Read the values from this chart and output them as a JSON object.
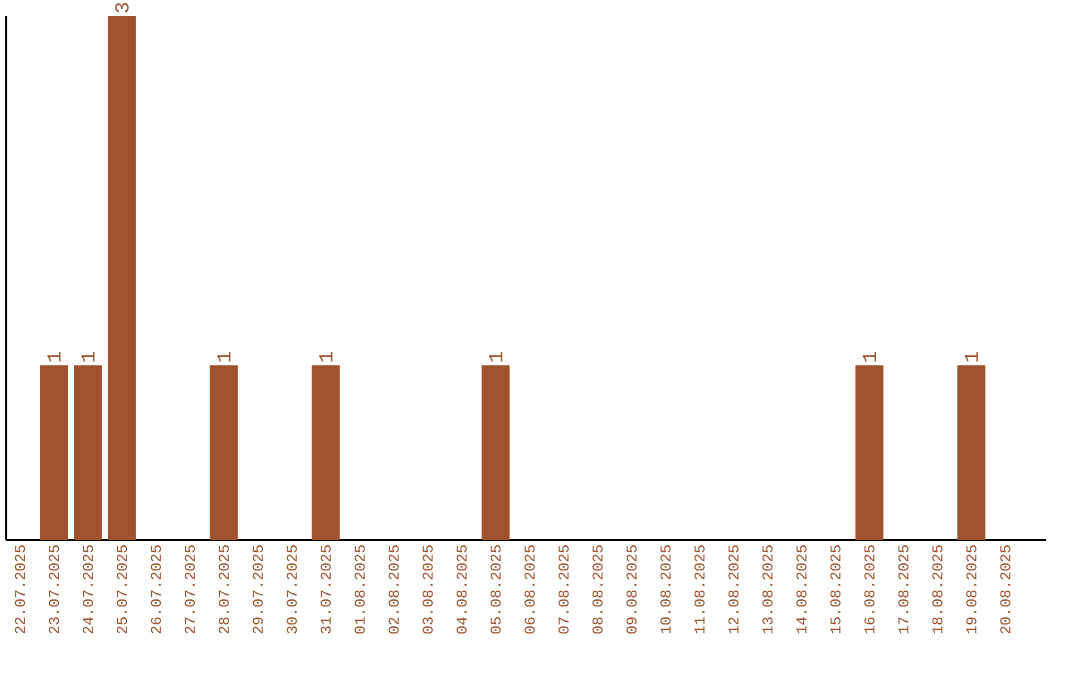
{
  "chart_data": {
    "type": "bar",
    "color": "#a0522d",
    "categories": [
      "22.07.2025",
      "23.07.2025",
      "24.07.2025",
      "25.07.2025",
      "26.07.2025",
      "27.07.2025",
      "28.07.2025",
      "29.07.2025",
      "30.07.2025",
      "31.07.2025",
      "01.08.2025",
      "02.08.2025",
      "03.08.2025",
      "04.08.2025",
      "05.08.2025",
      "06.08.2025",
      "07.08.2025",
      "08.08.2025",
      "09.08.2025",
      "10.08.2025",
      "11.08.2025",
      "12.08.2025",
      "13.08.2025",
      "14.08.2025",
      "15.08.2025",
      "16.08.2025",
      "17.08.2025",
      "18.08.2025",
      "19.08.2025",
      "20.08.2025"
    ],
    "values": [
      0,
      1,
      1,
      3,
      0,
      0,
      1,
      0,
      0,
      1,
      0,
      0,
      0,
      0,
      1,
      0,
      0,
      0,
      0,
      0,
      0,
      0,
      0,
      0,
      0,
      1,
      0,
      0,
      1,
      0
    ],
    "value_labels": [
      null,
      "1",
      "1",
      "3",
      null,
      null,
      "1",
      null,
      null,
      "1",
      null,
      null,
      null,
      null,
      "1",
      null,
      null,
      null,
      null,
      null,
      null,
      null,
      null,
      null,
      null,
      "1",
      null,
      null,
      "1",
      null
    ]
  }
}
